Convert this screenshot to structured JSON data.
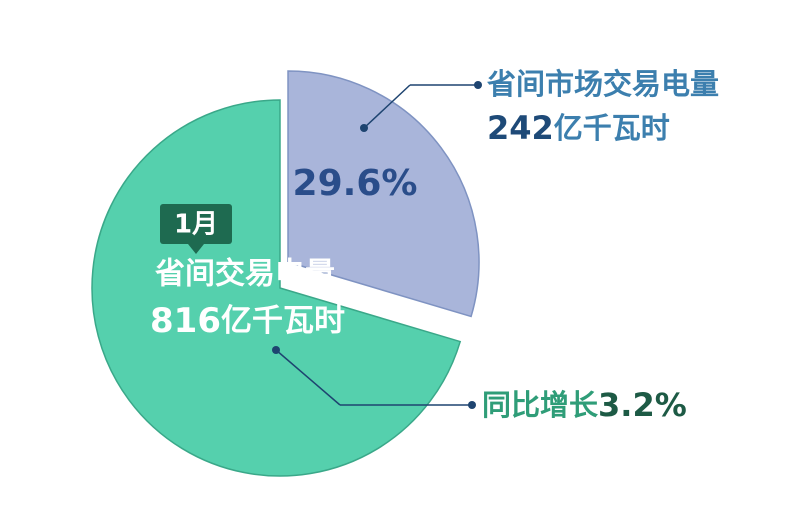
{
  "chart_data": {
    "type": "pie",
    "values": [
      29.6
    ],
    "value_labels": [
      "29.6%"
    ],
    "colors": [
      "#a9b5da"
    ],
    "base_color": "#55d0ad",
    "month": "1月",
    "annotations": [
      {
        "title": "省间市场交易电量",
        "value": 242,
        "unit": "亿千瓦时"
      },
      {
        "title": "省间交易电量",
        "value": 816,
        "unit": "亿千瓦时"
      },
      {
        "title": "同比增长",
        "value": 3.2,
        "unit": "%"
      }
    ]
  }
}
